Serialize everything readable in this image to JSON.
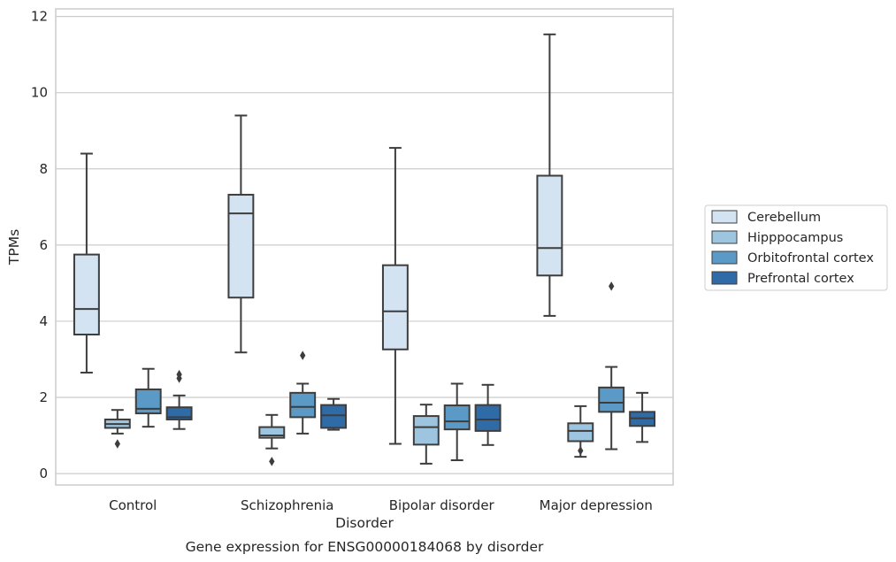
{
  "chart_data": {
    "type": "boxplot",
    "title": "",
    "caption": "Gene expression for ENSG00000184068 by disorder",
    "xlabel": "Disorder",
    "ylabel": "TPMs",
    "ylim": [
      -0.3,
      12.2
    ],
    "yticks": [
      "0",
      "2",
      "4",
      "6",
      "8",
      "10",
      "12"
    ],
    "grid": "horizontal",
    "legend_position": "right",
    "categories": [
      "Control",
      "Schizophrenia",
      "Bipolar disorder",
      "Major depression"
    ],
    "series": [
      {
        "name": "Cerebellum",
        "color": "#d3e3f2",
        "boxes": [
          {
            "min": 2.65,
            "q1": 3.65,
            "median": 4.32,
            "q3": 5.75,
            "max": 8.4,
            "outliers": []
          },
          {
            "min": 3.18,
            "q1": 4.62,
            "median": 6.83,
            "q3": 7.32,
            "max": 9.4,
            "outliers": []
          },
          {
            "min": 0.78,
            "q1": 3.26,
            "median": 4.26,
            "q3": 5.47,
            "max": 8.55,
            "outliers": []
          },
          {
            "min": 4.14,
            "q1": 5.2,
            "median": 5.92,
            "q3": 7.82,
            "max": 11.53,
            "outliers": []
          }
        ]
      },
      {
        "name": "Hipppocampus",
        "color": "#9dc5e0",
        "boxes": [
          {
            "min": 1.05,
            "q1": 1.2,
            "median": 1.3,
            "q3": 1.42,
            "max": 1.67,
            "outliers": [
              0.78
            ]
          },
          {
            "min": 0.66,
            "q1": 0.94,
            "median": 1.0,
            "q3": 1.22,
            "max": 1.54,
            "outliers": [
              0.32
            ]
          },
          {
            "min": 0.26,
            "q1": 0.76,
            "median": 1.22,
            "q3": 1.51,
            "max": 1.81,
            "outliers": []
          },
          {
            "min": 0.44,
            "q1": 0.85,
            "median": 1.12,
            "q3": 1.32,
            "max": 1.77,
            "outliers": [
              0.6
            ]
          }
        ]
      },
      {
        "name": "Orbitofrontal cortex",
        "color": "#5b9ac7",
        "boxes": [
          {
            "min": 1.23,
            "q1": 1.58,
            "median": 1.7,
            "q3": 2.21,
            "max": 2.75,
            "outliers": []
          },
          {
            "min": 1.05,
            "q1": 1.48,
            "median": 1.75,
            "q3": 2.12,
            "max": 2.36,
            "outliers": [
              3.1
            ]
          },
          {
            "min": 0.35,
            "q1": 1.16,
            "median": 1.37,
            "q3": 1.79,
            "max": 2.36,
            "outliers": []
          },
          {
            "min": 0.64,
            "q1": 1.62,
            "median": 1.86,
            "q3": 2.26,
            "max": 2.8,
            "outliers": [
              4.92
            ]
          }
        ]
      },
      {
        "name": "Prefrontal cortex",
        "color": "#2f6ba7",
        "boxes": [
          {
            "min": 1.17,
            "q1": 1.42,
            "median": 1.48,
            "q3": 1.74,
            "max": 2.05,
            "outliers": [
              2.5,
              2.6
            ]
          },
          {
            "min": 1.15,
            "q1": 1.2,
            "median": 1.53,
            "q3": 1.8,
            "max": 1.96,
            "outliers": []
          },
          {
            "min": 0.75,
            "q1": 1.12,
            "median": 1.42,
            "q3": 1.8,
            "max": 2.33,
            "outliers": []
          },
          {
            "min": 0.83,
            "q1": 1.25,
            "median": 1.45,
            "q3": 1.62,
            "max": 2.12,
            "outliers": []
          }
        ]
      }
    ]
  }
}
